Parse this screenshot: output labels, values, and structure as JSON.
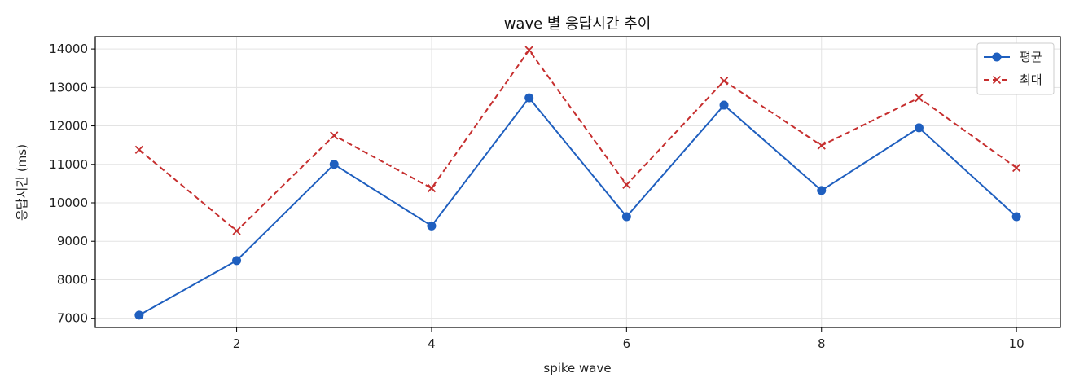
{
  "chart_data": {
    "type": "line",
    "title": "wave 별 응답시간 추이",
    "xlabel": "spike wave",
    "ylabel": "응답시간 (ms)",
    "x": [
      1,
      2,
      3,
      4,
      5,
      6,
      7,
      8,
      9,
      10
    ],
    "xlim": [
      0.55,
      10.45
    ],
    "ylim": [
      6760,
      14320
    ],
    "xticks": [
      2,
      4,
      6,
      8,
      10
    ],
    "yticks": [
      7000,
      8000,
      9000,
      10000,
      11000,
      12000,
      13000,
      14000
    ],
    "grid": true,
    "legend_position": "top-right",
    "series": [
      {
        "name": "평균",
        "color": "#1f5fbf",
        "style": "solid",
        "marker": "circle",
        "values": [
          7080,
          8500,
          11000,
          9400,
          12730,
          9640,
          12540,
          10320,
          11950,
          9640
        ]
      },
      {
        "name": "최대",
        "color": "#c62e2e",
        "style": "dashed",
        "marker": "x",
        "values": [
          11380,
          9270,
          11750,
          10380,
          13970,
          10470,
          13170,
          11490,
          12730,
          10910
        ]
      }
    ]
  }
}
